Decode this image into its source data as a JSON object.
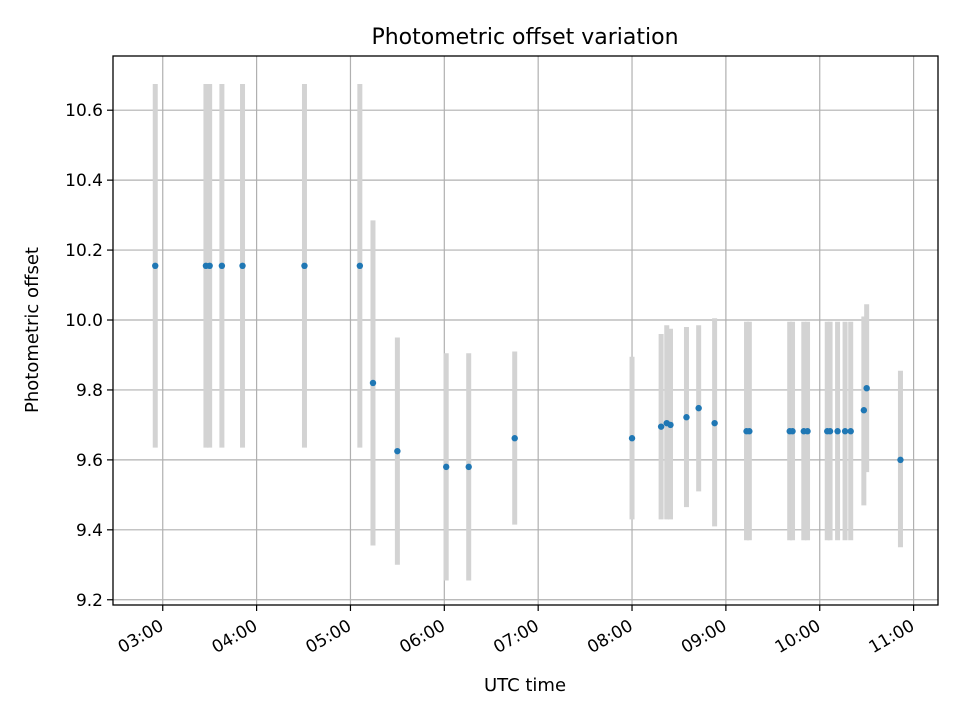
{
  "chart_data": {
    "type": "scatter",
    "title": "Photometric offset variation",
    "xlabel": "UTC time",
    "ylabel": "Photometric offset",
    "x_unit": "hours UTC",
    "xlim": [
      2.47,
      11.26
    ],
    "ylim": [
      9.185,
      10.755
    ],
    "grid": true,
    "x_ticks": [
      {
        "value": 3,
        "label": "03:00"
      },
      {
        "value": 4,
        "label": "04:00"
      },
      {
        "value": 5,
        "label": "05:00"
      },
      {
        "value": 6,
        "label": "06:00"
      },
      {
        "value": 7,
        "label": "07:00"
      },
      {
        "value": 8,
        "label": "08:00"
      },
      {
        "value": 9,
        "label": "09:00"
      },
      {
        "value": 10,
        "label": "10:00"
      },
      {
        "value": 11,
        "label": "11:00"
      }
    ],
    "y_ticks": [
      {
        "value": 9.2,
        "label": "9.2"
      },
      {
        "value": 9.4,
        "label": "9.4"
      },
      {
        "value": 9.6,
        "label": "9.6"
      },
      {
        "value": 9.8,
        "label": "9.8"
      },
      {
        "value": 10.0,
        "label": "10.0"
      },
      {
        "value": 10.2,
        "label": "10.2"
      },
      {
        "value": 10.4,
        "label": "10.4"
      },
      {
        "value": 10.6,
        "label": "10.6"
      }
    ],
    "colors": {
      "point": "#1f77b4",
      "errorbar": "#d3d3d3"
    },
    "series": [
      {
        "points": [
          {
            "x": 2.92,
            "y": 10.155,
            "lo": 9.635,
            "hi": 10.675
          },
          {
            "x": 3.46,
            "y": 10.155,
            "lo": 9.635,
            "hi": 10.675
          },
          {
            "x": 3.5,
            "y": 10.155,
            "lo": 9.635,
            "hi": 10.675
          },
          {
            "x": 3.63,
            "y": 10.155,
            "lo": 9.635,
            "hi": 10.675
          },
          {
            "x": 3.85,
            "y": 10.155,
            "lo": 9.635,
            "hi": 10.675
          },
          {
            "x": 4.51,
            "y": 10.155,
            "lo": 9.635,
            "hi": 10.675
          },
          {
            "x": 5.1,
            "y": 10.155,
            "lo": 9.635,
            "hi": 10.675
          },
          {
            "x": 5.24,
            "y": 9.82,
            "lo": 9.355,
            "hi": 10.285
          },
          {
            "x": 5.5,
            "y": 9.625,
            "lo": 9.3,
            "hi": 9.95
          },
          {
            "x": 6.02,
            "y": 9.58,
            "lo": 9.255,
            "hi": 9.905
          },
          {
            "x": 6.26,
            "y": 9.58,
            "lo": 9.255,
            "hi": 9.905
          },
          {
            "x": 6.75,
            "y": 9.662,
            "lo": 9.415,
            "hi": 9.91
          },
          {
            "x": 8.0,
            "y": 9.662,
            "lo": 9.43,
            "hi": 9.895
          },
          {
            "x": 8.31,
            "y": 9.695,
            "lo": 9.43,
            "hi": 9.96
          },
          {
            "x": 8.37,
            "y": 9.705,
            "lo": 9.43,
            "hi": 9.985
          },
          {
            "x": 8.41,
            "y": 9.7,
            "lo": 9.43,
            "hi": 9.975
          },
          {
            "x": 8.58,
            "y": 9.722,
            "lo": 9.465,
            "hi": 9.98
          },
          {
            "x": 8.71,
            "y": 9.748,
            "lo": 9.51,
            "hi": 9.985
          },
          {
            "x": 8.88,
            "y": 9.705,
            "lo": 9.41,
            "hi": 10.005
          },
          {
            "x": 9.22,
            "y": 9.682,
            "lo": 9.37,
            "hi": 9.995
          },
          {
            "x": 9.25,
            "y": 9.682,
            "lo": 9.37,
            "hi": 9.995
          },
          {
            "x": 9.68,
            "y": 9.682,
            "lo": 9.37,
            "hi": 9.995
          },
          {
            "x": 9.71,
            "y": 9.682,
            "lo": 9.37,
            "hi": 9.995
          },
          {
            "x": 9.83,
            "y": 9.682,
            "lo": 9.37,
            "hi": 9.995
          },
          {
            "x": 9.87,
            "y": 9.682,
            "lo": 9.37,
            "hi": 9.995
          },
          {
            "x": 10.08,
            "y": 9.682,
            "lo": 9.37,
            "hi": 9.995
          },
          {
            "x": 10.11,
            "y": 9.682,
            "lo": 9.37,
            "hi": 9.995
          },
          {
            "x": 10.19,
            "y": 9.682,
            "lo": 9.37,
            "hi": 9.995
          },
          {
            "x": 10.27,
            "y": 9.682,
            "lo": 9.37,
            "hi": 9.995
          },
          {
            "x": 10.33,
            "y": 9.682,
            "lo": 9.37,
            "hi": 9.995
          },
          {
            "x": 10.47,
            "y": 9.742,
            "lo": 9.47,
            "hi": 10.01
          },
          {
            "x": 10.5,
            "y": 9.805,
            "lo": 9.565,
            "hi": 10.045
          },
          {
            "x": 10.86,
            "y": 9.6,
            "lo": 9.35,
            "hi": 9.855
          }
        ]
      }
    ]
  }
}
